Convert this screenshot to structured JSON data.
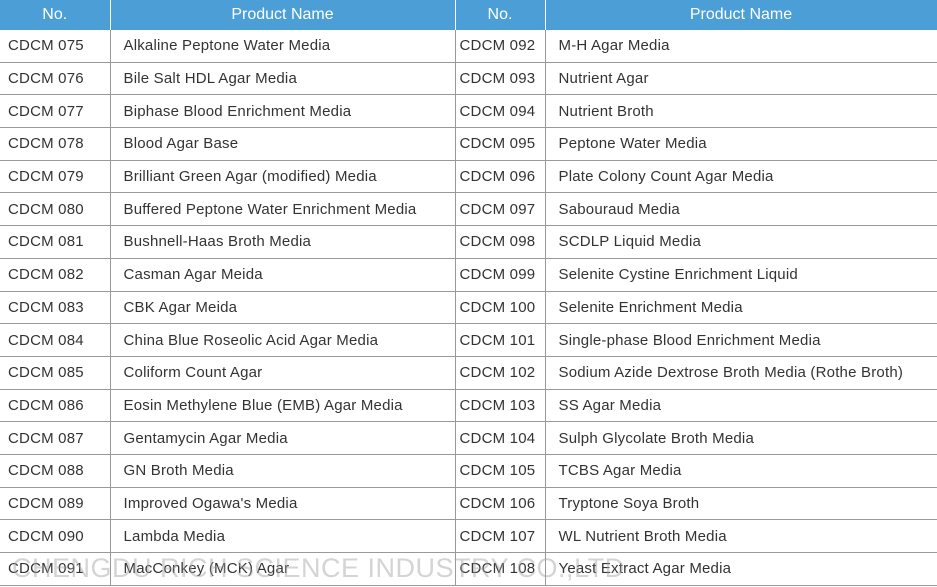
{
  "table": {
    "header": [
      "No.",
      "Product Name",
      "No.",
      "Product Name"
    ],
    "rows": [
      [
        "CDCM 075",
        "Alkaline Peptone Water Media",
        "CDCM 092",
        "M-H Agar Media"
      ],
      [
        "CDCM 076",
        "Bile Salt HDL Agar Media",
        "CDCM 093",
        "Nutrient Agar"
      ],
      [
        "CDCM 077",
        "Biphase Blood Enrichment Media",
        "CDCM 094",
        "Nutrient Broth"
      ],
      [
        "CDCM 078",
        "Blood Agar Base",
        "CDCM 095",
        "Peptone Water Media"
      ],
      [
        "CDCM 079",
        "Brilliant Green Agar (modified) Media",
        "CDCM 096",
        "Plate Colony Count Agar Media"
      ],
      [
        "CDCM 080",
        "Buffered Peptone Water Enrichment Media",
        "CDCM 097",
        "Sabouraud Media"
      ],
      [
        "CDCM 081",
        "Bushnell-Haas Broth Media",
        "CDCM 098",
        "SCDLP Liquid Media"
      ],
      [
        "CDCM 082",
        "Casman Agar Meida",
        "CDCM 099",
        "Selenite Cystine Enrichment Liquid"
      ],
      [
        "CDCM 083",
        "CBK Agar Meida",
        "CDCM 100",
        "Selenite Enrichment Media"
      ],
      [
        "CDCM 084",
        "China Blue Roseolic Acid Agar Media",
        "CDCM 101",
        "Single-phase Blood Enrichment Media"
      ],
      [
        "CDCM 085",
        "Coliform Count Agar",
        "CDCM 102",
        "Sodium Azide Dextrose Broth Media (Rothe Broth)"
      ],
      [
        "CDCM 086",
        "Eosin Methylene Blue (EMB) Agar Media",
        "CDCM 103",
        "SS Agar Media"
      ],
      [
        "CDCM 087",
        "Gentamycin Agar Media",
        "CDCM 104",
        "Sulph Glycolate Broth Media"
      ],
      [
        "CDCM 088",
        "GN Broth Media",
        "CDCM 105",
        "TCBS Agar Media"
      ],
      [
        "CDCM 089",
        "Improved Ogawa's Media",
        "CDCM 106",
        "Tryptone Soya Broth"
      ],
      [
        "CDCM 090",
        "Lambda Media",
        "CDCM 107",
        "WL Nutrient Broth Media"
      ],
      [
        "CDCM 091",
        "MacConkey (MCK) Agar",
        "CDCM 108",
        "Yeast Extract Agar Media"
      ]
    ]
  },
  "watermark": "CHENGDU RICH SCIENCE INDUSTRY CO.,LTD"
}
